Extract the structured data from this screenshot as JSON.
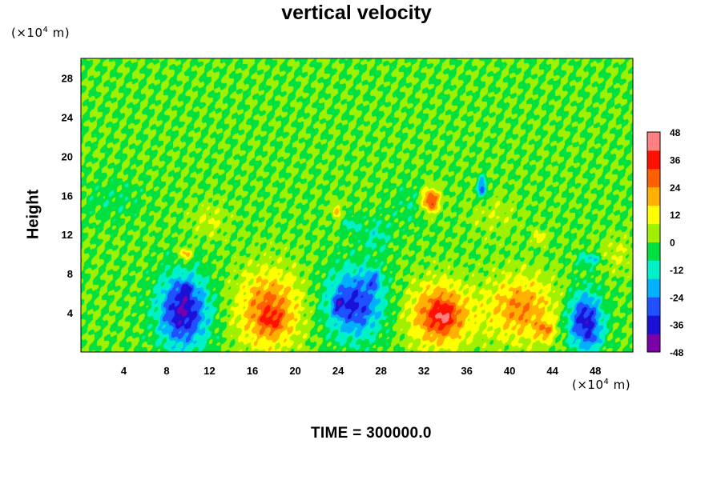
{
  "chart_data": {
    "type": "heatmap",
    "title": "vertical velocity",
    "ylabel": "Height",
    "x_unit": {
      "prefix": "(×10",
      "exp": "4",
      "suffix": " m)"
    },
    "y_unit": {
      "prefix": "(×10",
      "exp": "4",
      "suffix": " m)"
    },
    "xlim": [
      0,
      51.5
    ],
    "ylim": [
      0,
      30
    ],
    "x_ticks": [
      4,
      8,
      12,
      16,
      20,
      24,
      28,
      32,
      36,
      40,
      44,
      48
    ],
    "y_ticks": [
      4,
      8,
      12,
      16,
      20,
      24,
      28
    ],
    "colorbar": {
      "range": [
        -48,
        48
      ],
      "ticks": [
        48,
        36,
        24,
        12,
        0,
        -12,
        -24,
        -36,
        -48
      ],
      "colors": [
        "#7a00a8",
        "#1a10d8",
        "#2050ff",
        "#00b0ff",
        "#00f0c8",
        "#00e040",
        "#a0f000",
        "#ffff00",
        "#ffb000",
        "#ff6000",
        "#ff1000",
        "#ff8080"
      ]
    },
    "features": [
      {
        "x": 9.5,
        "y": 4.2,
        "sx": 1.6,
        "sy": 2.6,
        "value": -40
      },
      {
        "x": 9.7,
        "y": 6.5,
        "sx": 0.4,
        "sy": 0.5,
        "value": -12
      },
      {
        "x": 17.5,
        "y": 4.3,
        "sx": 2.0,
        "sy": 2.8,
        "value": 28
      },
      {
        "x": 17.8,
        "y": 3.2,
        "sx": 0.8,
        "sy": 0.8,
        "value": 10
      },
      {
        "x": 25.5,
        "y": 5.0,
        "sx": 1.8,
        "sy": 2.4,
        "value": -34
      },
      {
        "x": 27.3,
        "y": 7.4,
        "sx": 0.5,
        "sy": 0.7,
        "value": -16
      },
      {
        "x": 24.0,
        "y": 4.8,
        "sx": 0.4,
        "sy": 0.6,
        "value": -14
      },
      {
        "x": 33.5,
        "y": 3.8,
        "sx": 1.9,
        "sy": 2.2,
        "value": 34
      },
      {
        "x": 33.8,
        "y": 3.6,
        "sx": 0.6,
        "sy": 0.8,
        "value": 10
      },
      {
        "x": 41.0,
        "y": 4.5,
        "sx": 2.2,
        "sy": 2.3,
        "value": 24
      },
      {
        "x": 43.3,
        "y": 2.2,
        "sx": 0.6,
        "sy": 0.7,
        "value": 18
      },
      {
        "x": 47.0,
        "y": 3.2,
        "sx": 1.1,
        "sy": 2.0,
        "value": -38
      },
      {
        "x": 47.8,
        "y": 1.3,
        "sx": 0.4,
        "sy": 0.5,
        "value": -10
      },
      {
        "x": 32.6,
        "y": 15.5,
        "sx": 0.6,
        "sy": 0.9,
        "value": 36
      },
      {
        "x": 37.4,
        "y": 16.8,
        "sx": 0.3,
        "sy": 0.8,
        "value": -28
      },
      {
        "x": 23.8,
        "y": 14.5,
        "sx": 0.25,
        "sy": 0.6,
        "value": 20
      },
      {
        "x": 27.5,
        "y": 12.0,
        "sx": 1.0,
        "sy": 1.2,
        "value": -10
      },
      {
        "x": 25.2,
        "y": 13.0,
        "sx": 0.5,
        "sy": 0.6,
        "value": -12
      },
      {
        "x": 9.7,
        "y": 10.0,
        "sx": 0.4,
        "sy": 0.5,
        "value": 22
      },
      {
        "x": 47.5,
        "y": 9.5,
        "sx": 0.8,
        "sy": 0.5,
        "value": -16
      },
      {
        "x": 42.8,
        "y": 11.7,
        "sx": 0.4,
        "sy": 0.4,
        "value": 18
      },
      {
        "x": 31.0,
        "y": 15.0,
        "sx": 1.5,
        "sy": 1.5,
        "value": -6
      },
      {
        "x": 38.5,
        "y": 14.0,
        "sx": 1.5,
        "sy": 1.5,
        "value": 6
      },
      {
        "x": 12.0,
        "y": 13.5,
        "sx": 1.2,
        "sy": 1.2,
        "value": 8
      },
      {
        "x": 3.0,
        "y": 15.5,
        "sx": 2.0,
        "sy": 1.5,
        "value": -5
      },
      {
        "x": 50.0,
        "y": 10.0,
        "sx": 1.2,
        "sy": 1.2,
        "value": 8
      }
    ]
  },
  "footer": {
    "time_text": "TIME = 300000.0"
  }
}
